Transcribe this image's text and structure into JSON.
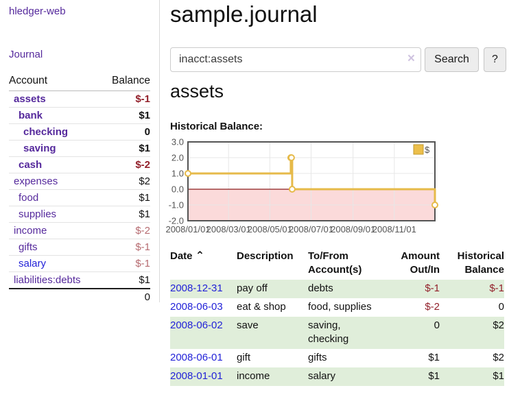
{
  "colors": {
    "link-purple": "#55299c",
    "link-blue": "#2222d8",
    "neg-strong": "#92202a",
    "neg-soft": "#b66b70",
    "row-green": "#e0eeda",
    "button-bg": "#ededed",
    "button-border": "#c6c6c6",
    "clear-icon": "#cfc3e0",
    "chart-line": "#e6ba49",
    "chart-legend-fill": "#ecbf4b",
    "chart-legend-border": "#c2992e",
    "chart-neg-fill": "#fbdada",
    "chart-zero-line": "#8b1a1a",
    "chart-border": "#545454",
    "chart-grid": "#e7e7e7"
  },
  "app": {
    "title": "hledger-web"
  },
  "sidebar": {
    "journal_link": "Journal",
    "accounts": {
      "headers": {
        "account": "Account",
        "balance": "Balance"
      },
      "rows": [
        {
          "name": "assets",
          "balance": "$-1"
        },
        {
          "name": "bank",
          "balance": "$1"
        },
        {
          "name": "checking",
          "balance": "0"
        },
        {
          "name": "saving",
          "balance": "$1"
        },
        {
          "name": "cash",
          "balance": "$-2"
        },
        {
          "name": "expenses",
          "balance": "$2"
        },
        {
          "name": "food",
          "balance": "$1"
        },
        {
          "name": "supplies",
          "balance": "$1"
        },
        {
          "name": "income",
          "balance": "$-2"
        },
        {
          "name": "gifts",
          "balance": "$-1"
        },
        {
          "name": "salary",
          "balance": "$-1"
        },
        {
          "name": "liabilities:debts",
          "balance": "$1"
        }
      ],
      "total": "0"
    }
  },
  "main": {
    "title": "sample.journal",
    "search": {
      "value": "inacct:assets",
      "clear_icon": "×",
      "button": "Search",
      "help_button": "?"
    },
    "account_heading": "assets",
    "chart_label": "Historical Balance:"
  },
  "chart_data": {
    "type": "line",
    "step": true,
    "title": "Historical Balance",
    "series": [
      {
        "name": "$",
        "points": [
          [
            "2008-01-01",
            1
          ],
          [
            "2008-06-01",
            2
          ],
          [
            "2008-06-02",
            2
          ],
          [
            "2008-06-03",
            0
          ],
          [
            "2008-12-31",
            -1
          ]
        ]
      }
    ],
    "xlim": [
      "2008-01-01",
      "2008-12-31"
    ],
    "ylim": [
      -2,
      3
    ],
    "y_ticks": [
      "3.0",
      "2.0",
      "1.0",
      "0.0",
      "-1.0",
      "-2.0"
    ],
    "x_ticks": [
      "2008/01/01",
      "2008/03/01",
      "2008/05/01",
      "2008/07/01",
      "2008/09/01",
      "2008/11/01"
    ],
    "legend": {
      "label": "$",
      "position": "top-right"
    },
    "grid": true,
    "negative_region_shaded": true
  },
  "register": {
    "headers": {
      "date": "Date",
      "sort_icon": "⌃",
      "description": "Description",
      "tofrom": "To/From Account(s)",
      "amount": "Amount Out/In",
      "historical": "Historical Balance"
    },
    "rows": [
      {
        "date": "2008-12-31",
        "description": "pay off",
        "tofrom": "debts",
        "amount": "$-1",
        "historical": "$-1"
      },
      {
        "date": "2008-06-03",
        "description": "eat & shop",
        "tofrom": "food, supplies",
        "amount": "$-2",
        "historical": "0"
      },
      {
        "date": "2008-06-02",
        "description": "save",
        "tofrom": "saving, checking",
        "amount": "0",
        "historical": "$2"
      },
      {
        "date": "2008-06-01",
        "description": "gift",
        "tofrom": "gifts",
        "amount": "$1",
        "historical": "$2"
      },
      {
        "date": "2008-01-01",
        "description": "income",
        "tofrom": "salary",
        "amount": "$1",
        "historical": "$1"
      }
    ]
  }
}
